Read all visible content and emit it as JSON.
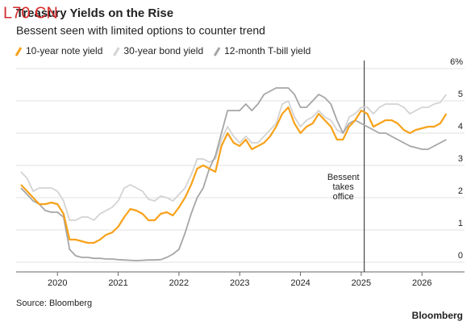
{
  "chart_data": {
    "type": "line",
    "watermark": "L70 CN",
    "title": "Treasury Yields on the Rise",
    "subtitle": "Bessent seen with limited options to counter trend",
    "x": [
      2019.4,
      2019.5,
      2019.6,
      2019.7,
      2019.8,
      2019.9,
      2020.0,
      2020.1,
      2020.2,
      2020.3,
      2020.4,
      2020.5,
      2020.6,
      2020.7,
      2020.8,
      2020.9,
      2021.0,
      2021.1,
      2021.2,
      2021.3,
      2021.4,
      2021.5,
      2021.6,
      2021.7,
      2021.8,
      2021.9,
      2022.0,
      2022.1,
      2022.2,
      2022.3,
      2022.4,
      2022.5,
      2022.6,
      2022.7,
      2022.8,
      2022.9,
      2023.0,
      2023.1,
      2023.2,
      2023.3,
      2023.4,
      2023.5,
      2023.6,
      2023.7,
      2023.8,
      2023.9,
      2024.0,
      2024.1,
      2024.2,
      2024.3,
      2024.4,
      2024.5,
      2024.6,
      2024.7,
      2024.8,
      2024.9,
      2025.0,
      2025.1,
      2025.2,
      2025.3,
      2025.4,
      2025.5,
      2025.6,
      2025.7,
      2025.8,
      2025.9,
      2026.0,
      2026.1,
      2026.2,
      2026.3,
      2026.4
    ],
    "series": [
      {
        "name": "30-year bond yield",
        "color": "#d3d3d3",
        "values": [
          2.8,
          2.6,
          2.2,
          2.3,
          2.3,
          2.3,
          2.2,
          1.9,
          1.3,
          1.3,
          1.4,
          1.4,
          1.3,
          1.5,
          1.6,
          1.7,
          1.9,
          2.3,
          2.4,
          2.3,
          2.2,
          1.95,
          1.9,
          2.05,
          2.0,
          1.9,
          2.1,
          2.3,
          2.7,
          3.2,
          3.2,
          3.1,
          3.2,
          3.8,
          4.2,
          3.9,
          3.7,
          3.9,
          3.7,
          3.7,
          3.9,
          4.1,
          4.3,
          4.9,
          5.0,
          4.5,
          4.2,
          4.4,
          4.5,
          4.7,
          4.5,
          4.4,
          4.1,
          4.0,
          4.5,
          4.6,
          4.8,
          4.8,
          4.6,
          4.8,
          4.9,
          4.9,
          4.9,
          4.8,
          4.6,
          4.7,
          4.8,
          4.8,
          4.9,
          4.95,
          5.2
        ]
      },
      {
        "name": "12-month T-bill yield",
        "color": "#a6a6a6",
        "values": [
          2.3,
          2.1,
          1.9,
          1.8,
          1.6,
          1.55,
          1.55,
          1.4,
          0.4,
          0.2,
          0.15,
          0.15,
          0.12,
          0.12,
          0.1,
          0.1,
          0.08,
          0.07,
          0.06,
          0.05,
          0.06,
          0.07,
          0.07,
          0.08,
          0.15,
          0.25,
          0.4,
          0.9,
          1.5,
          2.0,
          2.3,
          2.9,
          3.3,
          4.0,
          4.7,
          4.7,
          4.7,
          4.9,
          4.7,
          4.9,
          5.2,
          5.3,
          5.4,
          5.4,
          5.4,
          5.2,
          4.8,
          4.8,
          5.0,
          5.2,
          5.1,
          4.9,
          4.4,
          4.0,
          4.3,
          4.4,
          4.3,
          4.2,
          4.1,
          4.0,
          4.0,
          3.9,
          3.8,
          3.7,
          3.6,
          3.55,
          3.5,
          3.5,
          3.6,
          3.7,
          3.8
        ]
      },
      {
        "name": "10-year note yield",
        "color": "#f7a21b",
        "values": [
          2.4,
          2.2,
          2.0,
          1.8,
          1.8,
          1.85,
          1.8,
          1.5,
          0.7,
          0.7,
          0.65,
          0.6,
          0.6,
          0.7,
          0.85,
          0.92,
          1.1,
          1.4,
          1.65,
          1.6,
          1.5,
          1.3,
          1.3,
          1.5,
          1.55,
          1.45,
          1.7,
          2.0,
          2.4,
          2.9,
          3.0,
          2.9,
          2.8,
          3.6,
          4.0,
          3.7,
          3.6,
          3.8,
          3.5,
          3.6,
          3.7,
          3.9,
          4.2,
          4.6,
          4.8,
          4.3,
          4.0,
          4.2,
          4.3,
          4.6,
          4.4,
          4.2,
          3.8,
          3.8,
          4.2,
          4.4,
          4.7,
          4.6,
          4.2,
          4.3,
          4.4,
          4.4,
          4.3,
          4.1,
          4.0,
          4.1,
          4.15,
          4.2,
          4.2,
          4.3,
          4.6
        ]
      }
    ],
    "legend_order": [
      2,
      0,
      1
    ],
    "xlim": [
      2019.32,
      2026.7
    ],
    "xticks": [
      2020,
      2021,
      2022,
      2023,
      2024,
      2025,
      2026
    ],
    "ylim": [
      -0.3,
      6
    ],
    "yticks": [
      0,
      1,
      2,
      3,
      4,
      5,
      {
        "value": 6,
        "label": "6%"
      }
    ],
    "grid": true,
    "annotation": {
      "lines": [
        "Bessent",
        "takes",
        "office"
      ],
      "x": 2025.05
    },
    "source": "Source: Bloomberg",
    "brand": "Bloomberg"
  }
}
